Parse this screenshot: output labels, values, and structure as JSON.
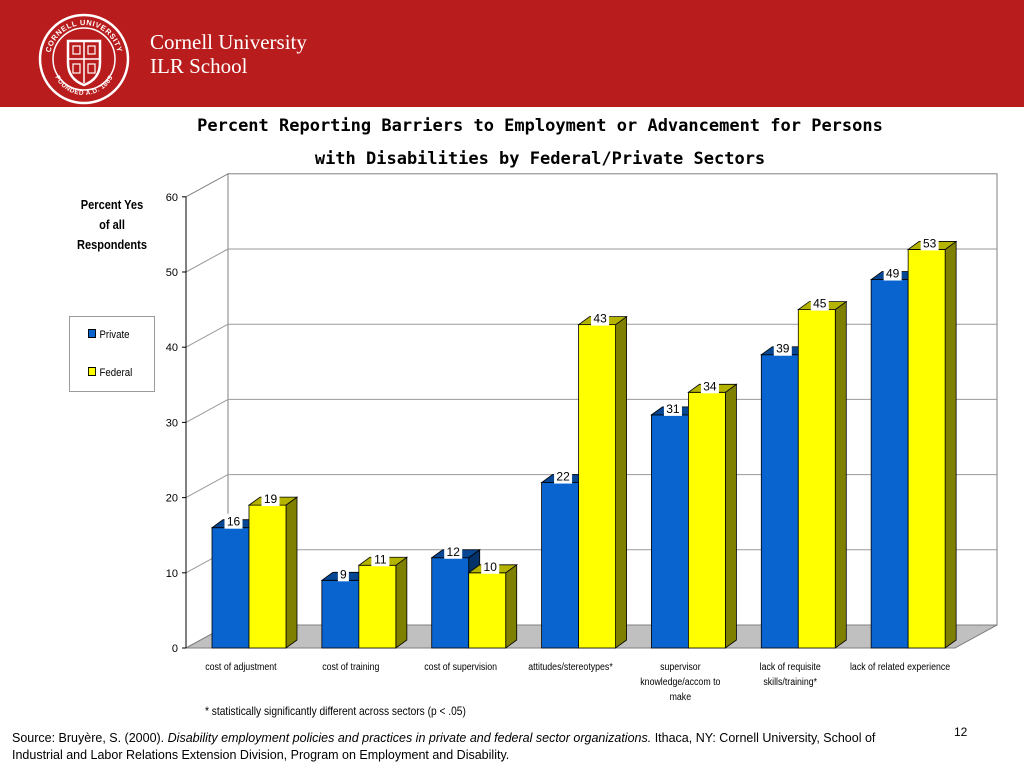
{
  "header": {
    "brand_line1": "Cornell University",
    "brand_line2": "ILR School",
    "seal_text": "CORNELL UNIVERSITY FOUNDED A.D. 1865",
    "bg_color": "#b91c1c"
  },
  "footnote": "* statistically significantly different across sectors (p < .05)",
  "source": {
    "prefix": "Source: Bruyère, S.  (2000). ",
    "title": "Disability employment policies and practices in private and federal sector organizations.",
    "suffix": " Ithaca, NY: Cornell University, School of Industrial and Labor Relations Extension Division, Program on Employment and Disability."
  },
  "page_number": "12",
  "chart_data": {
    "type": "bar",
    "title_lines": [
      "Percent Reporting Barriers to Employment or Advancement for Persons",
      "with Disabilities by Federal/Private Sectors"
    ],
    "ylabel_lines": [
      "Percent Yes",
      "of all",
      "Respondents"
    ],
    "xlabel": "",
    "ylim": [
      0,
      60
    ],
    "yticks": [
      0,
      10,
      20,
      30,
      40,
      50,
      60
    ],
    "grid": true,
    "legend_position": "left",
    "category_lines": [
      [
        "cost of adjustment"
      ],
      [
        "cost of training"
      ],
      [
        "cost of supervision"
      ],
      [
        "attitudes/stereotypes*"
      ],
      [
        "supervisor",
        "knowledge/accom to",
        "make"
      ],
      [
        "lack of requisite",
        "skills/training*"
      ],
      [
        "lack of related experience"
      ]
    ],
    "series": [
      {
        "name": "Private",
        "color": "#0a64d0",
        "values": [
          16,
          9,
          12,
          22,
          31,
          39,
          49
        ]
      },
      {
        "name": "Federal",
        "color": "#ffff00",
        "values": [
          19,
          11,
          10,
          43,
          34,
          45,
          53
        ]
      }
    ]
  }
}
